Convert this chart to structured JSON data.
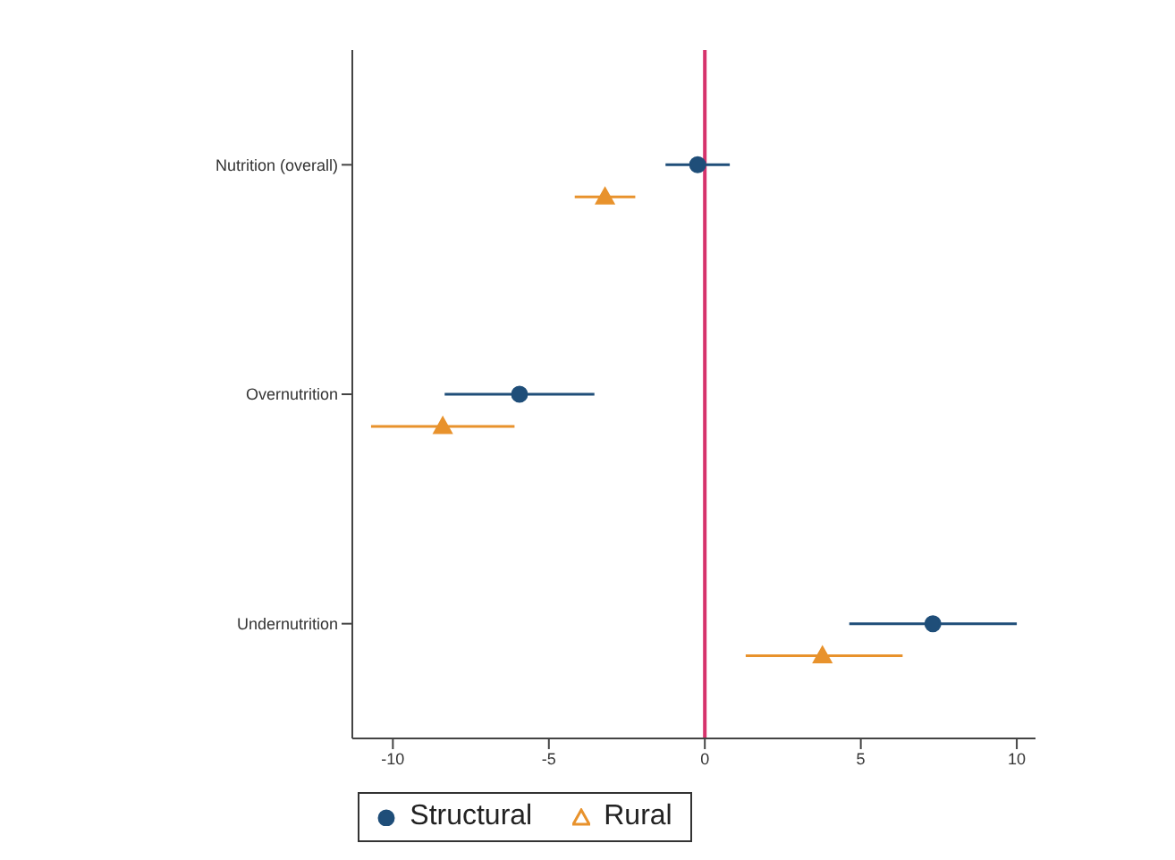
{
  "chart_data": {
    "type": "scatter",
    "orientation": "horizontal",
    "categories": [
      "Nutrition (overall)",
      "Overnutrition",
      "Undernutrition"
    ],
    "series": [
      {
        "name": "Structural",
        "color": "#1f4e79",
        "marker": "circle",
        "values": [
          -0.23,
          -5.94,
          7.31
        ],
        "errors": [
          [
            -1.26,
            0.8
          ],
          [
            -8.34,
            -3.54
          ],
          [
            4.63,
            10.0
          ]
        ]
      },
      {
        "name": "Rural",
        "color": "#e8922c",
        "marker": "triangle",
        "values": [
          -3.2,
          -8.4,
          3.77
        ],
        "errors": [
          [
            -4.17,
            -2.23
          ],
          [
            -10.7,
            -6.1
          ],
          [
            1.31,
            6.34
          ]
        ]
      }
    ],
    "xlim": [
      -11.3,
      10.6
    ],
    "xticks": [
      -10,
      -5,
      0,
      5,
      10
    ],
    "ref_lines": [
      {
        "axis": "x",
        "value": 0,
        "color": "#d6336c"
      }
    ],
    "grid": false,
    "legend": "bottom"
  }
}
